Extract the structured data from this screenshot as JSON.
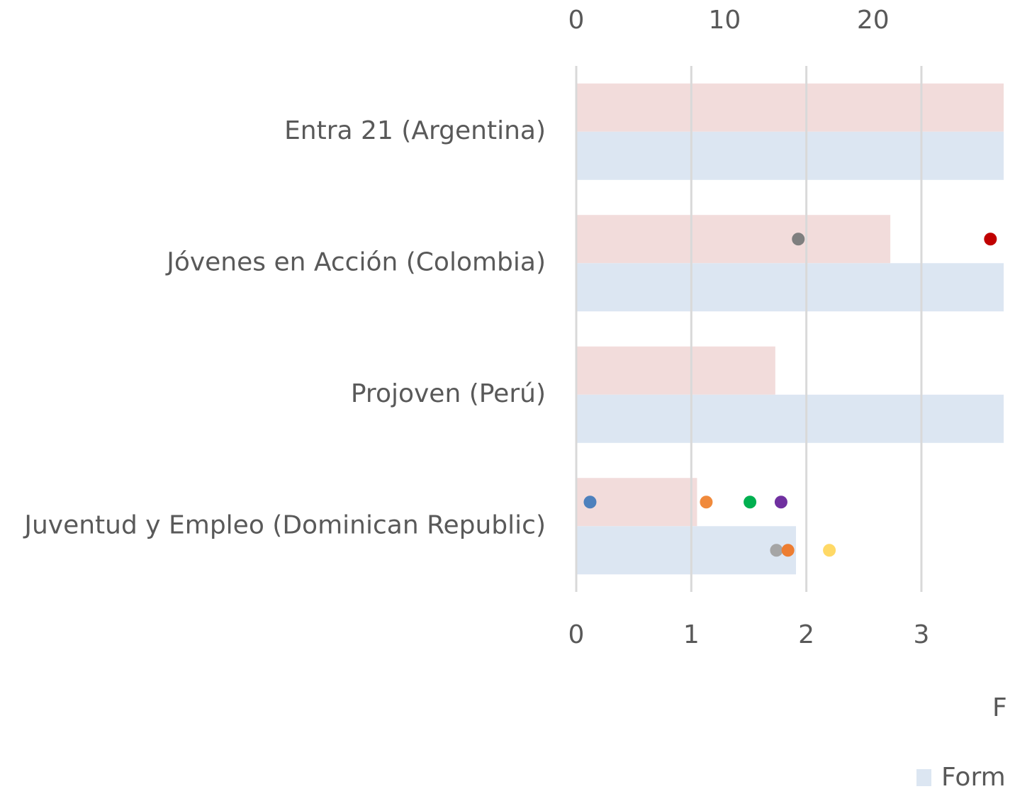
{
  "chart_data": {
    "type": "bar",
    "orientation": "horizontal",
    "categories": [
      "Entra 21 (Argentina)",
      "Jóvenes en Acción (Colombia)",
      "Projoven (Perú)",
      "Juventud y Empleo (Dominican Republic)"
    ],
    "series": [
      {
        "color": "#f2dcdb",
        "values": [
          4.0,
          2.73,
          1.73,
          1.05
        ],
        "dots": [
          [],
          [
            {
              "color": "#7f7f7f",
              "value": 1.93
            },
            {
              "color": "#c00000",
              "value": 3.6
            }
          ],
          [],
          [
            {
              "color": "#4e81bd",
              "value": 0.12
            },
            {
              "color": "#f08a3c",
              "value": 1.13
            },
            {
              "color": "#00b050",
              "value": 1.51
            },
            {
              "color": "#7030a0",
              "value": 1.78
            }
          ]
        ]
      },
      {
        "name": "Form",
        "color": "#dce6f2",
        "values": [
          4.0,
          4.0,
          4.0,
          1.91
        ],
        "dots": [
          [],
          [],
          [],
          [
            {
              "color": "#a5a5a5",
              "value": 1.74
            },
            {
              "color": "#ed7d31",
              "value": 1.84
            },
            {
              "color": "#ffd966",
              "value": 2.2
            }
          ]
        ]
      }
    ],
    "xlim": [
      0,
      3.715
    ],
    "xticks": [
      0,
      1,
      2,
      3
    ],
    "x2lim": [
      0,
      28.8
    ],
    "x2ticks": [
      0,
      10,
      20
    ],
    "xlabel": "F",
    "grid": true
  }
}
